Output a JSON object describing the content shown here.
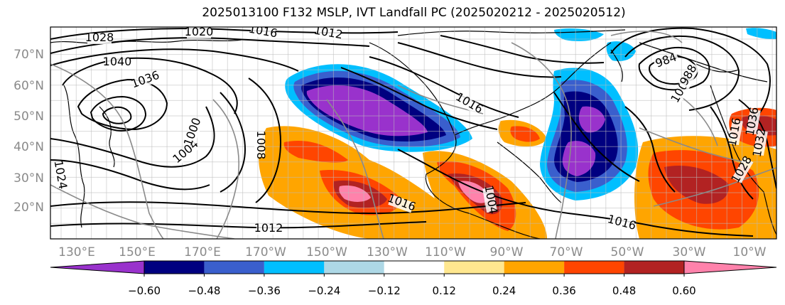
{
  "title": "2025013100 F132 MSLP, IVT Landfall PC (2025020212 - 2025020512)",
  "lat_labels": [
    "70°N",
    "60°N",
    "50°N",
    "40°N",
    "30°N",
    "20°N"
  ],
  "lon_labels": [
    "130°E",
    "150°E",
    "170°E",
    "170°W",
    "150°W",
    "130°W",
    "110°W",
    "90°W",
    "70°W",
    "50°W",
    "30°W",
    "10°W"
  ],
  "colorbar": {
    "colors": [
      "#9932cc",
      "#000080",
      "#3a5fcd",
      "#00bfff",
      "#add8e6",
      "#ffffff",
      "#ffe78f",
      "#ffa500",
      "#ff4500",
      "#b22222",
      "#ff82ab"
    ],
    "tick_labels": [
      "−0.60",
      "−0.48",
      "−0.36",
      "−0.24",
      "−0.12",
      "0.12",
      "0.24",
      "0.36",
      "0.48",
      "0.60"
    ]
  },
  "isobar_labels": [
    "1028",
    "1020",
    "1016",
    "1012",
    "1040",
    "1036",
    "1024",
    "1016",
    "1004",
    "1000",
    "1008",
    "1012",
    "1016",
    "1016",
    "984",
    "1016",
    "1036",
    "1032",
    "1028",
    "1004",
    "1004",
    "988"
  ]
}
